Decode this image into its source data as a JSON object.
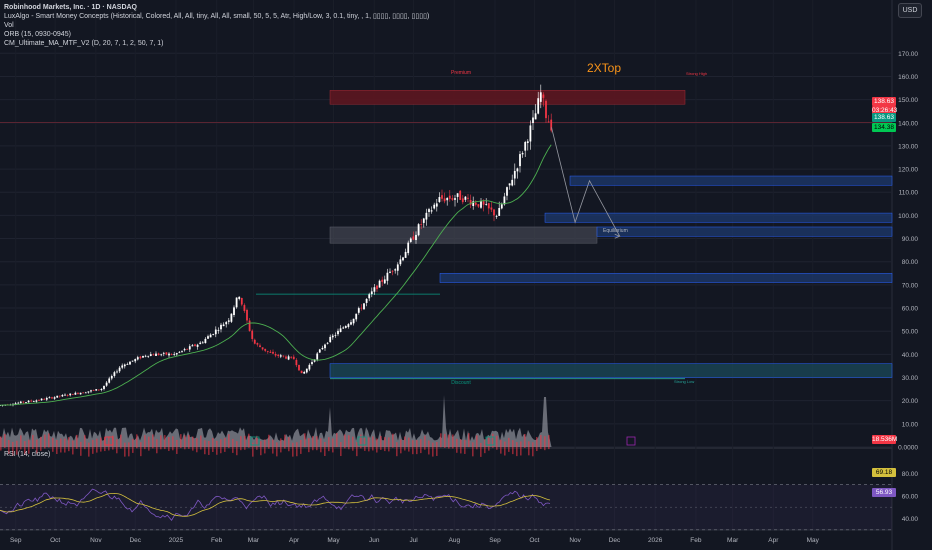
{
  "header": {
    "title": "Robinhood Markets, Inc. · 1D · NASDAQ",
    "indicators": [
      "LuxAlgo - Smart Money Concepts (Historical, Colored, All, All, tiny, All, All, small, 50, 5, 5, Atr, High/Low, 3, 0.1, tiny, , 1, ▯▯▯▯, ▯▯▯▯, ▯▯▯▯)",
      "Vol",
      "ORB (15, 0930-0945)",
      "CM_Ultimate_MA_MTF_V2 (D, 20, 7, 1, 2, 50, 7, 1)"
    ]
  },
  "currency_button": "USD",
  "rsi_label": "RSI (14, close)",
  "price_tags": {
    "last_price": "138.63",
    "countdown": "03:26:43",
    "close_price": "138.63",
    "ma_price": "134.38",
    "volume": "18.536M",
    "rsi_value": "69.18",
    "rsi_ma": "56.93"
  },
  "colors": {
    "background": "#131722",
    "up": "#ffffff",
    "down": "#f23645",
    "accent_green": "#089981",
    "ma_green": "#4caf50",
    "zone_blue": "#2962ff",
    "premium_red": "#8b1a24",
    "annotation_orange": "#f7931a",
    "rsi_purple": "#7e57c2",
    "rsi_ma": "#d4c03d"
  },
  "annotations": {
    "top_label": "2XTop",
    "premium": "Premium",
    "equilibrium": "Equilibrium",
    "discount": "Discount",
    "strong_high": "Strong High",
    "strong_low": "Strong Low"
  },
  "chart_data": {
    "type": "candlestick",
    "price_axis": {
      "ticks": [
        "170.00",
        "160.00",
        "150.00",
        "140.00",
        "130.00",
        "120.00",
        "110.00",
        "100.00",
        "90.00",
        "80.00",
        "70.00",
        "60.00",
        "50.00",
        "40.00",
        "30.00",
        "20.00",
        "10.00",
        "0.0000"
      ],
      "range": [
        0,
        175
      ]
    },
    "rsi_axis": {
      "ticks": [
        "80.00",
        "60.00",
        "40.00"
      ],
      "range": [
        24,
        86
      ],
      "bands": [
        70,
        30
      ]
    },
    "time_axis": [
      "Sep",
      "Oct",
      "Nov",
      "Dec",
      "2025",
      "Feb",
      "Mar",
      "Apr",
      "May",
      "Jun",
      "Jul",
      "Aug",
      "Sep",
      "Oct",
      "Nov",
      "Dec",
      "2026",
      "Feb",
      "Mar",
      "Apr",
      "May"
    ],
    "close_series": [
      {
        "x": "2024-08-20",
        "close": 18
      },
      {
        "x": "2024-09-15",
        "close": 20
      },
      {
        "x": "2024-10-15",
        "close": 23
      },
      {
        "x": "2024-11-05",
        "close": 25
      },
      {
        "x": "2024-11-20",
        "close": 35
      },
      {
        "x": "2024-12-10",
        "close": 40
      },
      {
        "x": "2024-12-31",
        "close": 40
      },
      {
        "x": "2025-01-20",
        "close": 45
      },
      {
        "x": "2025-02-10",
        "close": 55
      },
      {
        "x": "2025-02-18",
        "close": 66
      },
      {
        "x": "2025-03-01",
        "close": 45
      },
      {
        "x": "2025-03-15",
        "close": 40
      },
      {
        "x": "2025-04-01",
        "close": 38
      },
      {
        "x": "2025-04-07",
        "close": 31
      },
      {
        "x": "2025-04-25",
        "close": 45
      },
      {
        "x": "2025-05-15",
        "close": 55
      },
      {
        "x": "2025-06-01",
        "close": 68
      },
      {
        "x": "2025-06-20",
        "close": 80
      },
      {
        "x": "2025-07-05",
        "close": 95
      },
      {
        "x": "2025-07-20",
        "close": 107
      },
      {
        "x": "2025-08-05",
        "close": 108
      },
      {
        "x": "2025-08-20",
        "close": 105
      },
      {
        "x": "2025-09-03",
        "close": 100
      },
      {
        "x": "2025-09-20",
        "close": 125
      },
      {
        "x": "2025-10-01",
        "close": 142
      },
      {
        "x": "2025-10-06",
        "close": 153
      },
      {
        "x": "2025-10-10",
        "close": 143
      },
      {
        "x": "2025-10-14",
        "close": 138.63
      }
    ],
    "zones": [
      {
        "name": "premium",
        "from": 148,
        "to": 154
      },
      {
        "name": "equilibrium",
        "from": 88,
        "to": 95
      },
      {
        "name": "fvg-1",
        "from": 113,
        "to": 117
      },
      {
        "name": "fvg-2",
        "from": 97,
        "to": 101
      },
      {
        "name": "fvg-3",
        "from": 91,
        "to": 95
      },
      {
        "name": "fvg-4",
        "from": 71,
        "to": 75
      },
      {
        "name": "discount",
        "from": 30,
        "to": 36
      }
    ],
    "projection": [
      {
        "x": "2025-10-14",
        "y": 138
      },
      {
        "x": "2025-11-01",
        "y": 97
      },
      {
        "x": "2025-11-12",
        "y": 115
      },
      {
        "x": "2025-12-05",
        "y": 91
      }
    ]
  }
}
